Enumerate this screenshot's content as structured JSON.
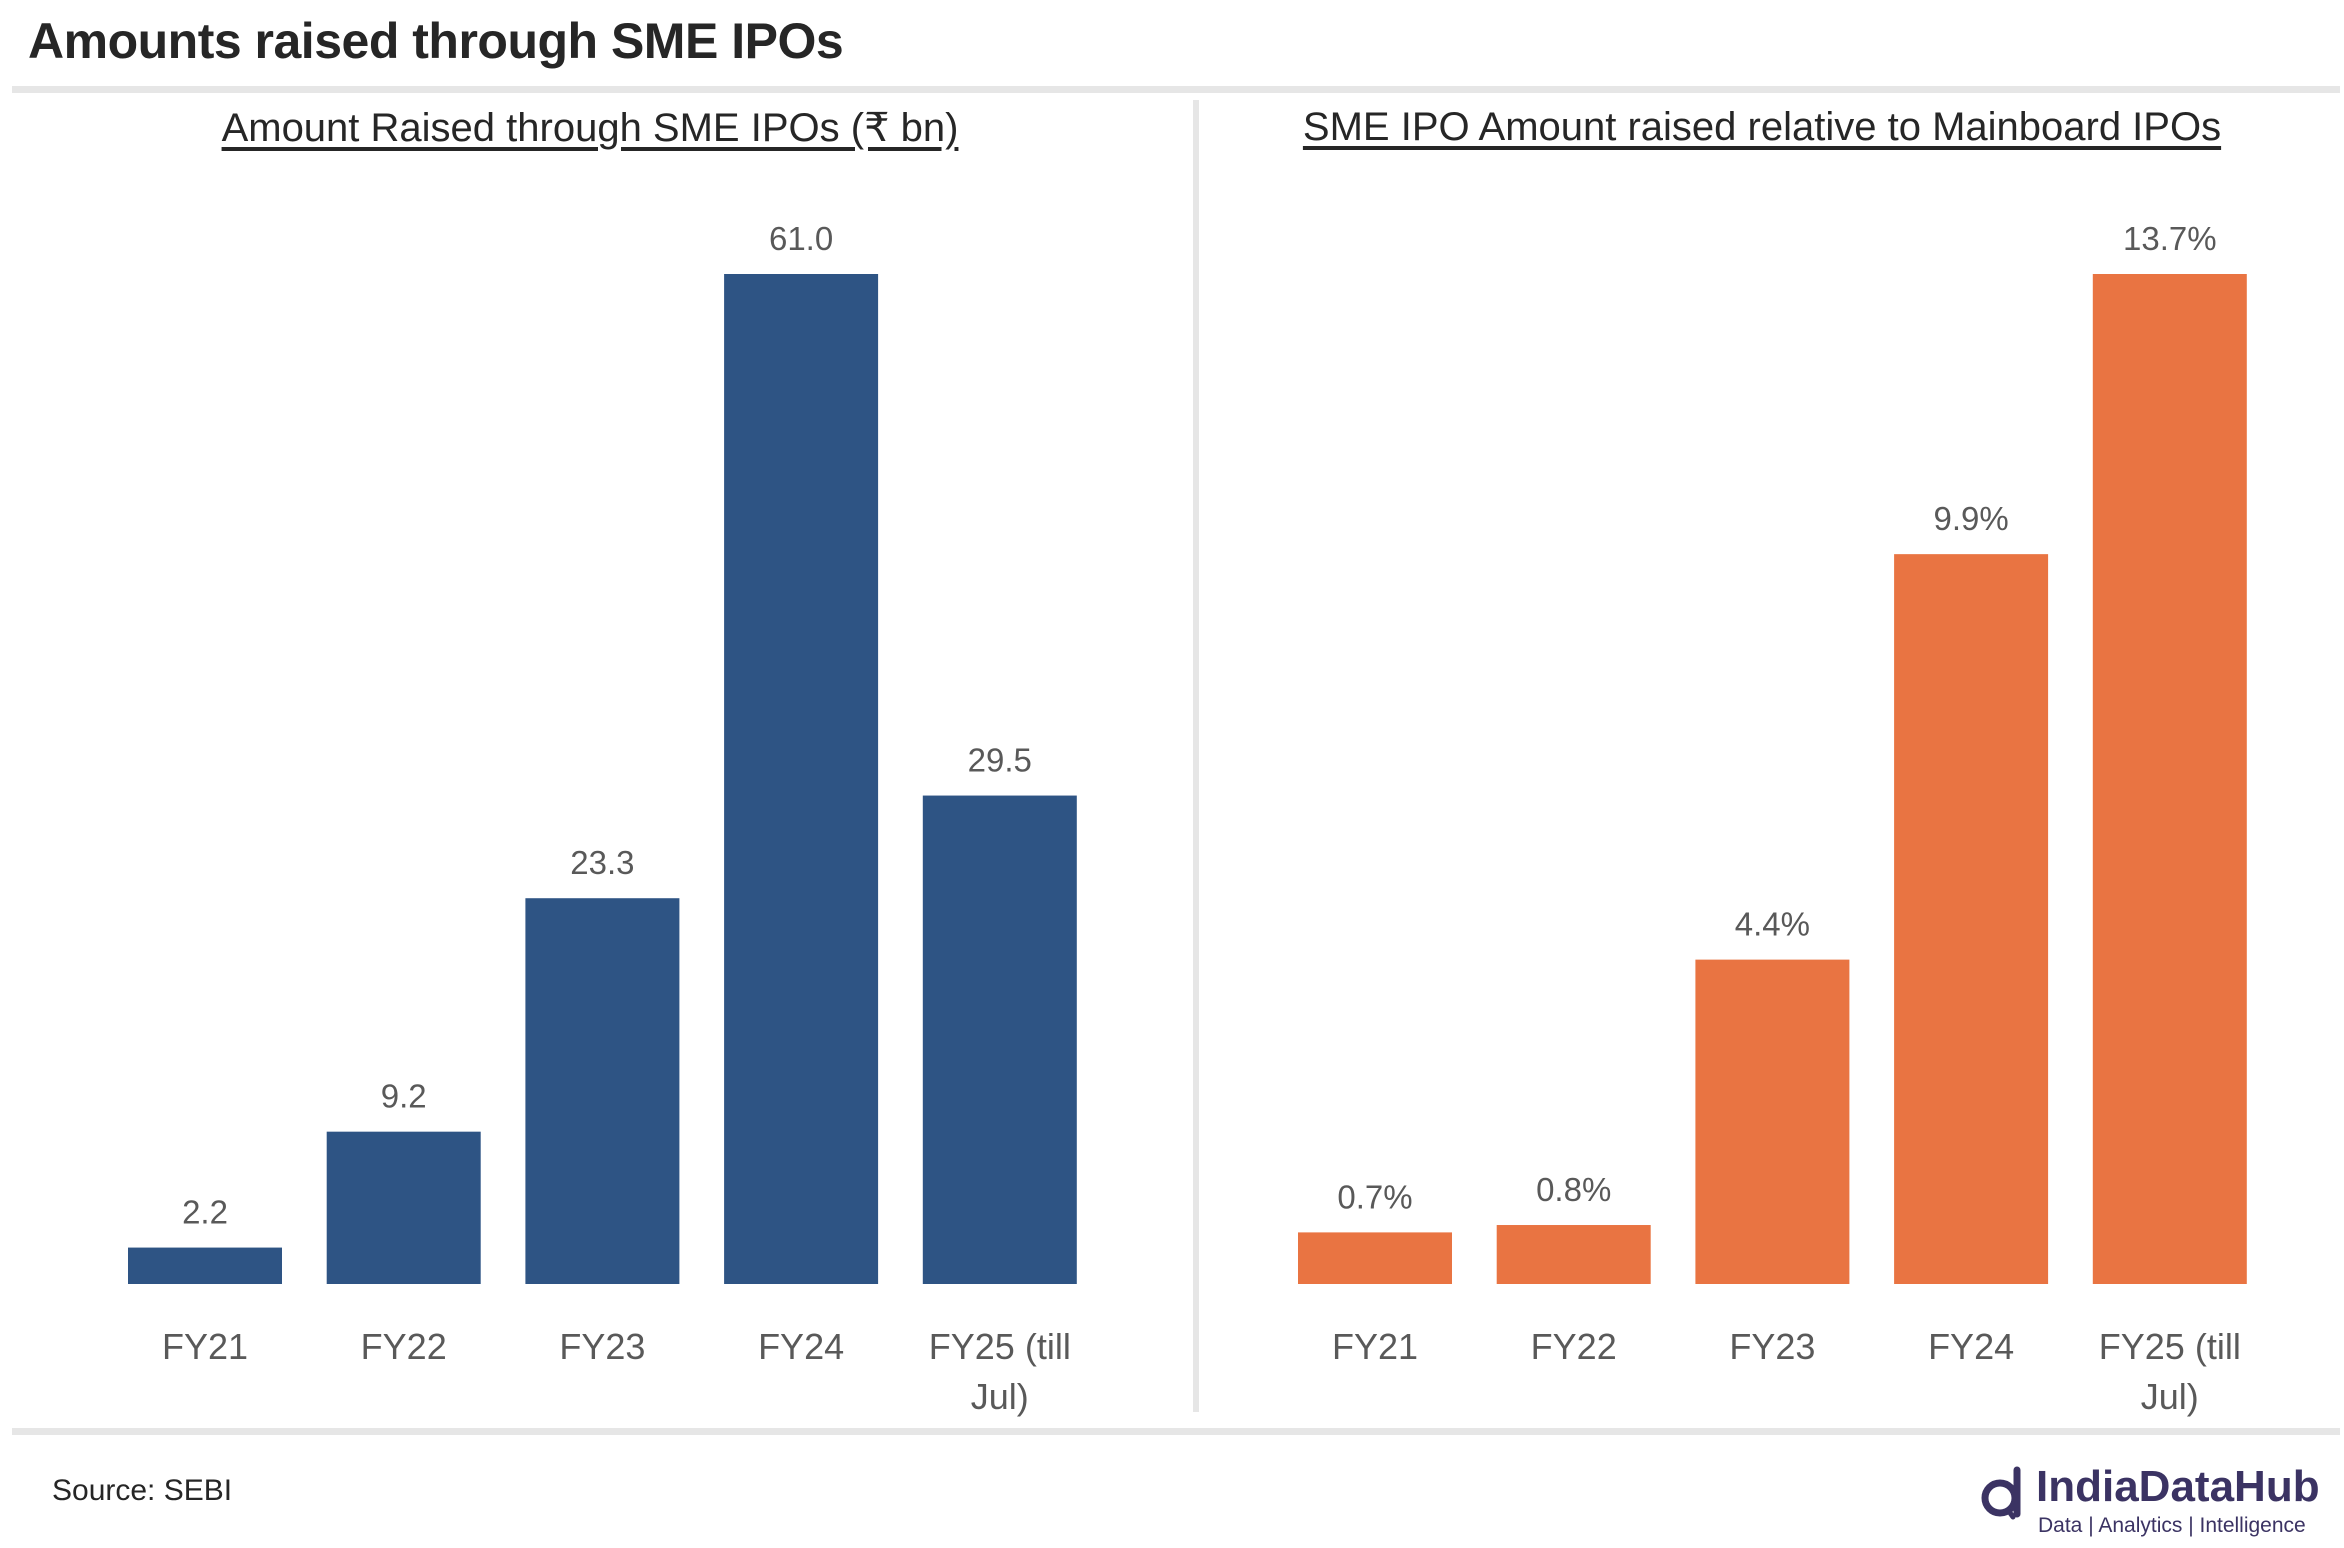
{
  "title": "Amounts raised through SME IPOs",
  "source": "Source: SEBI",
  "logo": {
    "name": "IndiaDataHub",
    "tagline": "Data | Analytics | Intelligence"
  },
  "colors": {
    "left": "#2E5484",
    "right": "#E97442"
  },
  "chart_data": [
    {
      "type": "bar",
      "title": "Amount Raised through SME IPOs (₹ bn)",
      "categories": [
        "FY21",
        "FY22",
        "FY23",
        "FY24",
        "FY25 (till Jul)"
      ],
      "values": [
        2.2,
        9.2,
        23.3,
        61.0,
        29.5
      ],
      "labels": [
        "2.2",
        "9.2",
        "23.3",
        "61.0",
        "29.5"
      ],
      "ylim": [
        0,
        61.0
      ],
      "grid": false,
      "color": "#2E5484"
    },
    {
      "type": "bar",
      "title": "SME IPO Amount raised relative to Mainboard IPOs",
      "categories": [
        "FY21",
        "FY22",
        "FY23",
        "FY24",
        "FY25 (till Jul)"
      ],
      "values": [
        0.7,
        0.8,
        4.4,
        9.9,
        13.7
      ],
      "labels": [
        "0.7%",
        "0.8%",
        "4.4%",
        "9.9%",
        "13.7%"
      ],
      "ylim": [
        0,
        13.7
      ],
      "grid": false,
      "color": "#E97442"
    }
  ]
}
